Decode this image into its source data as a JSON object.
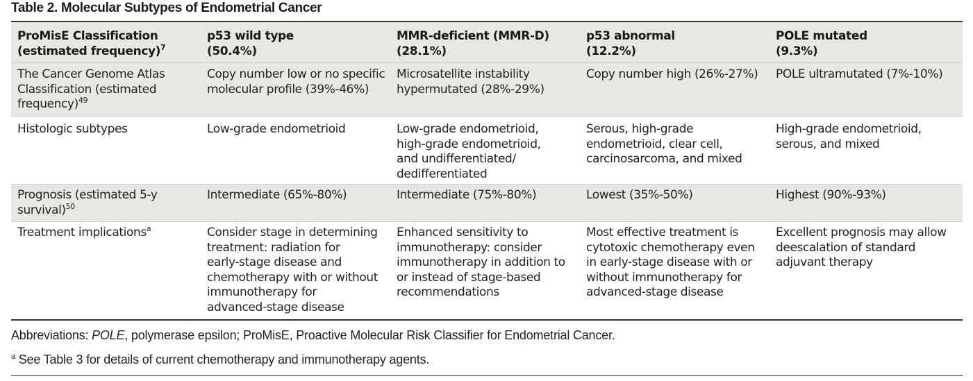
{
  "title": "Table 2. Molecular Subtypes of Endometrial Cancer",
  "header": {
    "col1_line1": "ProMisE Classification",
    "col1_line2": "(estimated frequency)",
    "col1_sup": "7",
    "col2_line1": "p53 wild type",
    "col2_line2": "(50.4%)",
    "col3_line1": "MMR-deficient (MMR-D)",
    "col3_line2": "(28.1%)",
    "col4_line1": "p53 abnormal",
    "col4_line2": "(12.2%)",
    "col5_line1": "POLE mutated",
    "col5_line2": "(9.3%)"
  },
  "rows": {
    "tcga": {
      "label_l1": "The Cancer Genome Atlas",
      "label_l2": "Classification (estimated",
      "label_l3": "frequency)",
      "label_sup": "49",
      "c2": [
        "Copy number low or no specific",
        "molecular profile (39%-46%)"
      ],
      "c3": [
        "Microsatellite instability",
        "hypermutated (28%-29%)"
      ],
      "c4": [
        "Copy number high (26%-27%)"
      ],
      "c5": [
        "POLE ultramutated (7%-10%)"
      ]
    },
    "histologic": {
      "label": "Histologic subtypes",
      "c2": [
        "Low-grade endometrioid"
      ],
      "c3": [
        "Low-grade endometrioid,",
        "high-grade endometrioid,",
        "and undifferentiated/",
        "dedifferentiated"
      ],
      "c4": [
        "Serous, high-grade",
        "endometrioid, clear cell,",
        "carcinosarcoma, and mixed"
      ],
      "c5": [
        "High-grade endometrioid,",
        "serous, and mixed"
      ]
    },
    "prognosis": {
      "label_l1": "Prognosis (estimated 5-y",
      "label_l2": "survival)",
      "label_sup": "50",
      "c2": [
        "Intermediate (65%-80%)"
      ],
      "c3": [
        "Intermediate (75%-80%)"
      ],
      "c4": [
        "Lowest (35%-50%)"
      ],
      "c5": [
        "Highest (90%-93%)"
      ]
    },
    "treatment": {
      "label": "Treatment implications",
      "label_sup": "a",
      "c2": [
        "Consider stage in determining",
        "treatment: radiation for",
        "early-stage disease and",
        "chemotherapy with or without",
        "immunotherapy for",
        "advanced-stage disease"
      ],
      "c3": [
        "Enhanced sensitivity to",
        "immunotherapy: consider",
        "immunotherapy in addition to",
        "or instead of stage-based",
        "recommendations"
      ],
      "c4": [
        "Most effective treatment is",
        "cytotoxic chemotherapy even",
        "in early-stage disease with or",
        "without immunotherapy for",
        "advanced-stage disease"
      ],
      "c5": [
        "Excellent prognosis may allow",
        "deescalation of standard",
        "adjuvant therapy"
      ]
    }
  },
  "footnotes": {
    "abbrev_prefix": "Abbreviations: ",
    "abbrev_pole": "POLE",
    "abbrev_rest": ", polymerase epsilon; ProMisE, Proactive Molecular Risk Classifier for Endometrial Cancer.",
    "note_marker": "a",
    "note_text": " See Table 3 for details of current chemotherapy and immunotherapy agents."
  },
  "colors": {
    "header_shade": "#e8e8e3",
    "rule": "#333333",
    "row_divider": "#cfcfcf"
  }
}
